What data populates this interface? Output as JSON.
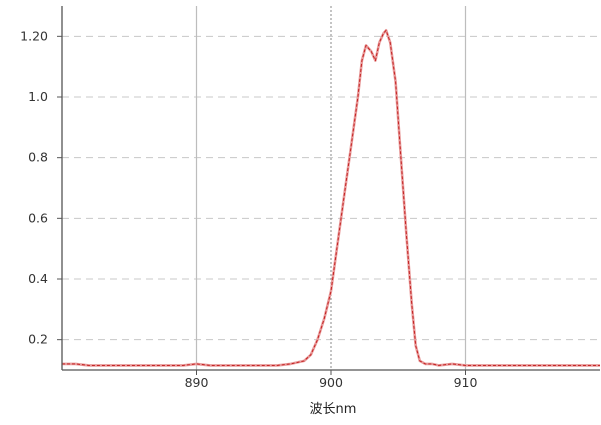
{
  "chart_data": {
    "type": "line",
    "title": "",
    "xlabel": "波长nm",
    "ylabel": "",
    "xlim": [
      880,
      920
    ],
    "ylim": [
      0.1,
      1.3
    ],
    "x_ticks": [
      890,
      900,
      910
    ],
    "x_tick_labels": [
      "890",
      "900",
      "910"
    ],
    "y_ticks": [
      0.2,
      0.4,
      0.6,
      0.8,
      1.0,
      1.2
    ],
    "y_tick_labels": [
      "0.2",
      "0.4",
      "0.6",
      "0.8",
      "1.0",
      "1.20"
    ],
    "grid": {
      "vertical": {
        "solid": [
          890,
          910
        ],
        "dotted": [
          900
        ]
      },
      "horizontal": "dashed"
    },
    "colors": {
      "series_outer": "#e89a9a",
      "series_inner": "#c01818",
      "grid_solid": "#bdbdbd",
      "grid_dashed": "#c8c8c8",
      "grid_dotted": "#8a8a8a",
      "axis": "#555555"
    },
    "series": [
      {
        "x": [
          880,
          881,
          882,
          883,
          884,
          885,
          886,
          887,
          888,
          889,
          890,
          891,
          892,
          893,
          894,
          895,
          896,
          897,
          897.5,
          898,
          898.5,
          899,
          899.5,
          900,
          900.5,
          901,
          901.5,
          902,
          902.3,
          902.6,
          903,
          903.3,
          903.6,
          903.9,
          904.1,
          904.4,
          904.8,
          905.2,
          905.6,
          906,
          906.3,
          906.6,
          907,
          907.5,
          908,
          909,
          910,
          912,
          915,
          918,
          920
        ],
        "y": [
          0.12,
          0.12,
          0.115,
          0.115,
          0.115,
          0.115,
          0.115,
          0.115,
          0.115,
          0.115,
          0.12,
          0.115,
          0.115,
          0.115,
          0.115,
          0.115,
          0.115,
          0.12,
          0.125,
          0.13,
          0.15,
          0.2,
          0.27,
          0.36,
          0.52,
          0.68,
          0.84,
          1.0,
          1.12,
          1.17,
          1.15,
          1.12,
          1.18,
          1.21,
          1.22,
          1.18,
          1.05,
          0.8,
          0.55,
          0.32,
          0.18,
          0.13,
          0.12,
          0.12,
          0.115,
          0.12,
          0.115,
          0.115,
          0.115,
          0.115,
          0.115
        ]
      }
    ]
  }
}
